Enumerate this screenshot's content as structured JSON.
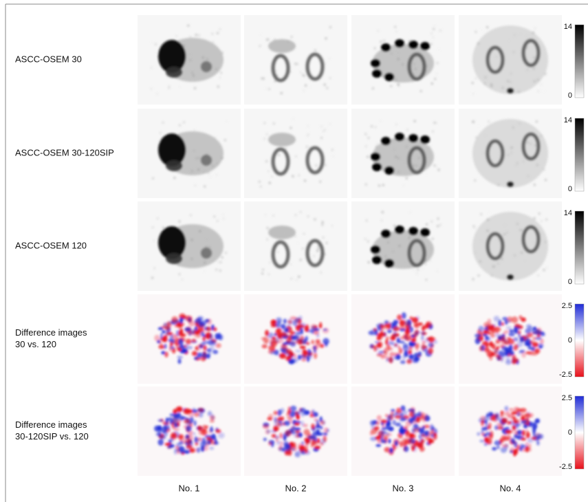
{
  "rows": [
    {
      "label": [
        "ASCC-OSEM 30"
      ],
      "scale": [
        "14",
        "0"
      ]
    },
    {
      "label": [
        "ASCC-OSEM 30-120SIP"
      ],
      "scale": [
        "14",
        "0"
      ]
    },
    {
      "label": [
        "ASCC-OSEM 120"
      ],
      "scale": [
        "14",
        "0"
      ]
    },
    {
      "label": [
        "Difference images",
        "30 vs. 120"
      ],
      "scale": [
        "2.5",
        "0",
        "-2.5"
      ]
    },
    {
      "label": [
        "Difference images",
        "30-120SIP  vs. 120"
      ],
      "scale": [
        "2.5",
        "0",
        "-2.5"
      ]
    }
  ],
  "columns": [
    "No. 1",
    "No. 2",
    "No. 3",
    "No. 4"
  ]
}
